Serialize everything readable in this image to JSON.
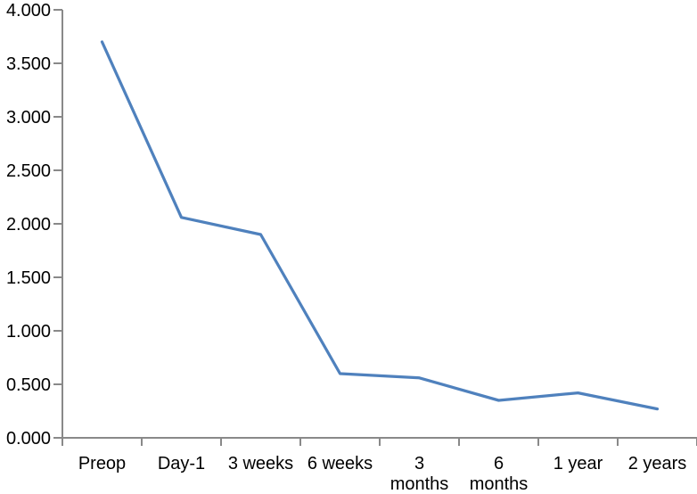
{
  "chart_data": {
    "type": "line",
    "title": "",
    "xlabel": "",
    "ylabel": "",
    "categories": [
      "Preop",
      "Day-1",
      "3 weeks",
      "6 weeks",
      "3 months",
      "6 months",
      "1 year",
      "2 years"
    ],
    "category_label_lines": [
      [
        "Preop"
      ],
      [
        "Day-1"
      ],
      [
        "3 weeks"
      ],
      [
        "6 weeks"
      ],
      [
        "3",
        "months"
      ],
      [
        "6",
        "months"
      ],
      [
        "1 year"
      ],
      [
        "2 years"
      ]
    ],
    "series": [
      {
        "name": "",
        "values": [
          3.7,
          2.06,
          1.9,
          0.6,
          0.56,
          0.35,
          0.42,
          0.27
        ]
      }
    ],
    "y_tick_labels": [
      "0.000",
      "0.500",
      "1.000",
      "1.500",
      "2.000",
      "2.500",
      "3.000",
      "3.500",
      "4.000"
    ],
    "ylim": [
      0,
      4
    ],
    "y_tick_step": 0.5,
    "grid": false,
    "legend_position": "none",
    "line_color": "#4F81BD",
    "line_width": 3.25,
    "axis_color": "#898989",
    "text_color": "#000000",
    "background_color": "#FFFFFF",
    "tick_font_size": 20
  }
}
